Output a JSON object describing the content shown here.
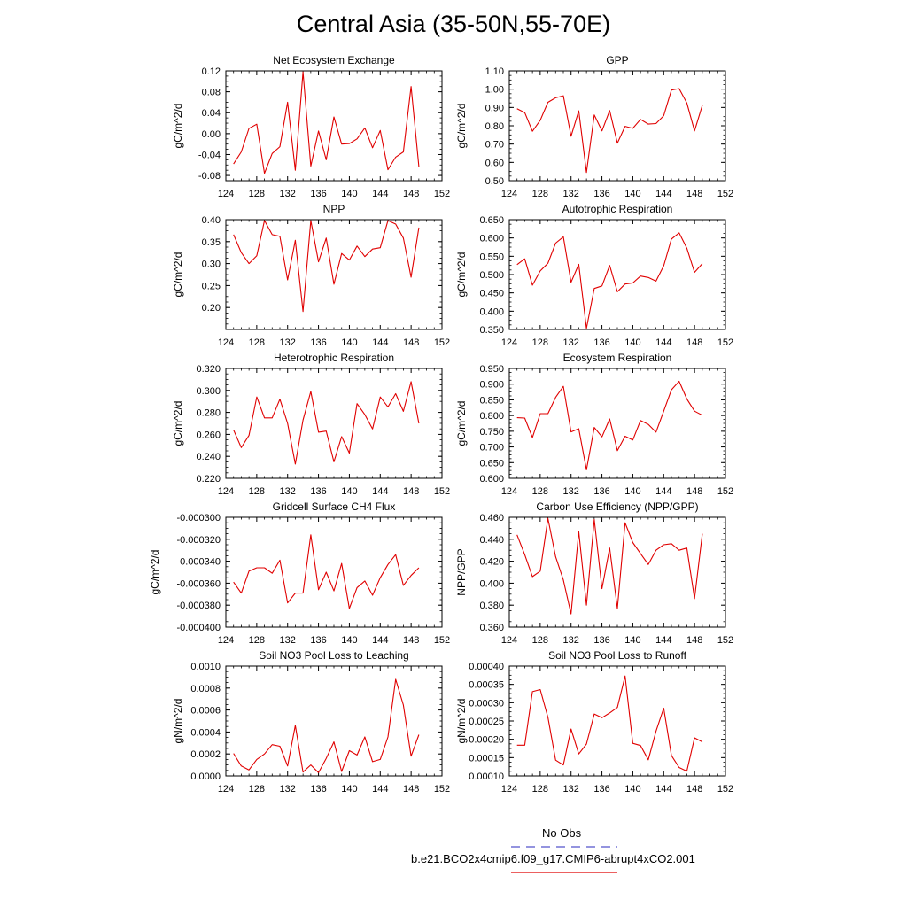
{
  "title": "Central Asia (35-50N,55-70E)",
  "legend": {
    "entries": [
      {
        "label": "No Obs",
        "color": "#5555cc",
        "style": "dashed"
      },
      {
        "label": "b.e21.BCO2x4cmip6.f09_g17.CMIP6-abrupt4xCO2.001",
        "color": "#e00000",
        "style": "solid"
      }
    ]
  },
  "chart_data": [
    {
      "type": "line",
      "title": "Net Ecosystem Exchange",
      "ylabel": "gC/m^2/d",
      "xlim": [
        124,
        152
      ],
      "ylim": [
        -0.09,
        0.12
      ],
      "xticks": [
        "124",
        "128",
        "132",
        "136",
        "140",
        "144",
        "148",
        "152"
      ],
      "yticks": [
        {
          "v": 0.12,
          "label": "0.12"
        },
        {
          "v": 0.08,
          "label": "0.08"
        },
        {
          "v": 0.04,
          "label": "0.04"
        },
        {
          "v": 0.0,
          "label": "0.00"
        },
        {
          "v": -0.04,
          "label": "-0.04"
        },
        {
          "v": -0.08,
          "label": "-0.08"
        }
      ],
      "series": [
        {
          "color": "#e00000",
          "x_start": 125,
          "values": [
            -0.058,
            -0.035,
            0.01,
            0.018,
            -0.076,
            -0.038,
            -0.025,
            0.06,
            -0.07,
            0.118,
            -0.062,
            0.005,
            -0.05,
            0.032,
            -0.02,
            -0.019,
            -0.01,
            0.011,
            -0.027,
            0.006,
            -0.069,
            -0.045,
            -0.035,
            0.09,
            -0.063
          ]
        }
      ]
    },
    {
      "type": "line",
      "title": "GPP",
      "ylabel": "gC/m^2/d",
      "xlim": [
        124,
        152
      ],
      "ylim": [
        0.5,
        1.1
      ],
      "xticks": [
        "124",
        "128",
        "132",
        "136",
        "140",
        "144",
        "148",
        "152"
      ],
      "yticks": [
        {
          "v": 1.1,
          "label": "1.10"
        },
        {
          "v": 1.0,
          "label": "1.00"
        },
        {
          "v": 0.9,
          "label": "0.90"
        },
        {
          "v": 0.8,
          "label": "0.80"
        },
        {
          "v": 0.7,
          "label": "0.70"
        },
        {
          "v": 0.6,
          "label": "0.60"
        },
        {
          "v": 0.5,
          "label": "0.50"
        }
      ],
      "series": [
        {
          "color": "#e00000",
          "x_start": 125,
          "values": [
            0.893,
            0.872,
            0.77,
            0.83,
            0.928,
            0.953,
            0.964,
            0.743,
            0.882,
            0.545,
            0.859,
            0.772,
            0.883,
            0.705,
            0.797,
            0.786,
            0.835,
            0.809,
            0.812,
            0.855,
            0.995,
            1.003,
            0.925,
            0.772,
            0.912
          ]
        }
      ]
    },
    {
      "type": "line",
      "title": "NPP",
      "ylabel": "gC/m^2/d",
      "xlim": [
        124,
        152
      ],
      "ylim": [
        0.15,
        0.4
      ],
      "xticks": [
        "124",
        "128",
        "132",
        "136",
        "140",
        "144",
        "148",
        "152"
      ],
      "yticks": [
        {
          "v": 0.4,
          "label": "0.40"
        },
        {
          "v": 0.35,
          "label": "0.35"
        },
        {
          "v": 0.3,
          "label": "0.30"
        },
        {
          "v": 0.25,
          "label": "0.25"
        },
        {
          "v": 0.2,
          "label": "0.20"
        }
      ],
      "series": [
        {
          "color": "#e00000",
          "x_start": 125,
          "values": [
            0.366,
            0.325,
            0.3,
            0.318,
            0.398,
            0.366,
            0.362,
            0.263,
            0.353,
            0.191,
            0.398,
            0.304,
            0.358,
            0.253,
            0.323,
            0.308,
            0.34,
            0.316,
            0.333,
            0.336,
            0.398,
            0.39,
            0.358,
            0.269,
            0.382
          ]
        }
      ]
    },
    {
      "type": "line",
      "title": "Autotrophic Respiration",
      "ylabel": "gC/m^2/d",
      "xlim": [
        124,
        152
      ],
      "ylim": [
        0.35,
        0.65
      ],
      "xticks": [
        "124",
        "128",
        "132",
        "136",
        "140",
        "144",
        "148",
        "152"
      ],
      "yticks": [
        {
          "v": 0.65,
          "label": "0.650"
        },
        {
          "v": 0.6,
          "label": "0.600"
        },
        {
          "v": 0.55,
          "label": "0.550"
        },
        {
          "v": 0.5,
          "label": "0.500"
        },
        {
          "v": 0.45,
          "label": "0.450"
        },
        {
          "v": 0.4,
          "label": "0.400"
        },
        {
          "v": 0.35,
          "label": "0.350"
        }
      ],
      "series": [
        {
          "color": "#e00000",
          "x_start": 125,
          "values": [
            0.527,
            0.543,
            0.471,
            0.51,
            0.531,
            0.586,
            0.603,
            0.479,
            0.528,
            0.353,
            0.462,
            0.469,
            0.525,
            0.453,
            0.474,
            0.477,
            0.496,
            0.492,
            0.482,
            0.524,
            0.597,
            0.614,
            0.572,
            0.506,
            0.53
          ]
        }
      ]
    },
    {
      "type": "line",
      "title": "Heterotrophic Respiration",
      "ylabel": "gC/m^2/d",
      "xlim": [
        124,
        152
      ],
      "ylim": [
        0.22,
        0.32
      ],
      "xticks": [
        "124",
        "128",
        "132",
        "136",
        "140",
        "144",
        "148",
        "152"
      ],
      "yticks": [
        {
          "v": 0.32,
          "label": "0.320"
        },
        {
          "v": 0.3,
          "label": "0.300"
        },
        {
          "v": 0.28,
          "label": "0.280"
        },
        {
          "v": 0.26,
          "label": "0.260"
        },
        {
          "v": 0.24,
          "label": "0.240"
        },
        {
          "v": 0.22,
          "label": "0.220"
        }
      ],
      "series": [
        {
          "color": "#e00000",
          "x_start": 125,
          "values": [
            0.264,
            0.248,
            0.259,
            0.294,
            0.275,
            0.275,
            0.292,
            0.27,
            0.233,
            0.273,
            0.299,
            0.262,
            0.263,
            0.235,
            0.258,
            0.243,
            0.288,
            0.278,
            0.265,
            0.294,
            0.285,
            0.297,
            0.281,
            0.308,
            0.27
          ]
        }
      ]
    },
    {
      "type": "line",
      "title": "Ecosystem Respiration",
      "ylabel": "gC/m^2/d",
      "xlim": [
        124,
        152
      ],
      "ylim": [
        0.6,
        0.95
      ],
      "xticks": [
        "124",
        "128",
        "132",
        "136",
        "140",
        "144",
        "148",
        "152"
      ],
      "yticks": [
        {
          "v": 0.95,
          "label": "0.950"
        },
        {
          "v": 0.9,
          "label": "0.900"
        },
        {
          "v": 0.85,
          "label": "0.850"
        },
        {
          "v": 0.8,
          "label": "0.800"
        },
        {
          "v": 0.75,
          "label": "0.750"
        },
        {
          "v": 0.7,
          "label": "0.700"
        },
        {
          "v": 0.65,
          "label": "0.650"
        },
        {
          "v": 0.6,
          "label": "0.600"
        }
      ],
      "series": [
        {
          "color": "#e00000",
          "x_start": 125,
          "values": [
            0.793,
            0.792,
            0.73,
            0.806,
            0.806,
            0.858,
            0.893,
            0.748,
            0.758,
            0.627,
            0.762,
            0.732,
            0.789,
            0.688,
            0.734,
            0.722,
            0.784,
            0.772,
            0.747,
            0.814,
            0.882,
            0.909,
            0.853,
            0.814,
            0.801
          ]
        }
      ]
    },
    {
      "type": "line",
      "title": "Gridcell Surface CH4 Flux",
      "ylabel": "gC/m^2/d",
      "xlim": [
        124,
        152
      ],
      "ylim": [
        -0.0004,
        -0.0003
      ],
      "xticks": [
        "124",
        "128",
        "132",
        "136",
        "140",
        "144",
        "148",
        "152"
      ],
      "yticks": [
        {
          "v": -0.0003,
          "label": "-0.000300"
        },
        {
          "v": -0.00032,
          "label": "-0.000320"
        },
        {
          "v": -0.00034,
          "label": "-0.000340"
        },
        {
          "v": -0.00036,
          "label": "-0.000360"
        },
        {
          "v": -0.00038,
          "label": "-0.000380"
        },
        {
          "v": -0.0004,
          "label": "-0.000400"
        }
      ],
      "series": [
        {
          "color": "#e00000",
          "x_start": 125,
          "values": [
            -0.000359,
            -0.000369,
            -0.000349,
            -0.000346,
            -0.000346,
            -0.000351,
            -0.000339,
            -0.000378,
            -0.000369,
            -0.000369,
            -0.000316,
            -0.000366,
            -0.00035,
            -0.000367,
            -0.000342,
            -0.000383,
            -0.000364,
            -0.000358,
            -0.000371,
            -0.000355,
            -0.000343,
            -0.000334,
            -0.000362,
            -0.000353,
            -0.000346
          ]
        }
      ]
    },
    {
      "type": "line",
      "title": "Carbon Use Efficiency (NPP/GPP)",
      "ylabel": "NPP/GPP",
      "xlim": [
        124,
        152
      ],
      "ylim": [
        0.36,
        0.46
      ],
      "xticks": [
        "124",
        "128",
        "132",
        "136",
        "140",
        "144",
        "148",
        "152"
      ],
      "yticks": [
        {
          "v": 0.46,
          "label": "0.460"
        },
        {
          "v": 0.44,
          "label": "0.440"
        },
        {
          "v": 0.42,
          "label": "0.420"
        },
        {
          "v": 0.4,
          "label": "0.400"
        },
        {
          "v": 0.38,
          "label": "0.380"
        },
        {
          "v": 0.36,
          "label": "0.360"
        }
      ],
      "series": [
        {
          "color": "#e00000",
          "x_start": 125,
          "values": [
            0.444,
            0.426,
            0.406,
            0.411,
            0.459,
            0.424,
            0.403,
            0.372,
            0.447,
            0.38,
            0.458,
            0.395,
            0.432,
            0.377,
            0.455,
            0.437,
            0.427,
            0.417,
            0.43,
            0.435,
            0.436,
            0.43,
            0.432,
            0.386,
            0.445
          ]
        }
      ]
    },
    {
      "type": "line",
      "title": "Soil NO3 Pool Loss to Leaching",
      "ylabel": "gN/m^2/d",
      "xlim": [
        124,
        152
      ],
      "ylim": [
        0.0,
        0.001
      ],
      "xticks": [
        "124",
        "128",
        "132",
        "136",
        "140",
        "144",
        "148",
        "152"
      ],
      "yticks": [
        {
          "v": 0.001,
          "label": "0.0010"
        },
        {
          "v": 0.0008,
          "label": "0.0008"
        },
        {
          "v": 0.0006,
          "label": "0.0006"
        },
        {
          "v": 0.0004,
          "label": "0.0004"
        },
        {
          "v": 0.0002,
          "label": "0.0002"
        },
        {
          "v": 0.0,
          "label": "0.0000"
        }
      ],
      "series": [
        {
          "color": "#e00000",
          "x_start": 125,
          "values": [
            0.000205,
            9e-05,
            5.5e-05,
            0.00015,
            0.0002,
            0.000285,
            0.00027,
            9e-05,
            0.00046,
            3.5e-05,
            0.0001,
            3e-05,
            0.00016,
            0.00031,
            4e-05,
            0.00023,
            0.00019,
            0.000355,
            0.00013,
            0.00015,
            0.000355,
            0.00088,
            0.000645,
            0.00018,
            0.000375
          ]
        }
      ]
    },
    {
      "type": "line",
      "title": "Soil NO3 Pool Loss to Runoff",
      "ylabel": "gN/m^2/d",
      "xlim": [
        124,
        152
      ],
      "ylim": [
        0.0001,
        0.0004
      ],
      "xticks": [
        "124",
        "128",
        "132",
        "136",
        "140",
        "144",
        "148",
        "152"
      ],
      "yticks": [
        {
          "v": 0.0004,
          "label": "0.00040"
        },
        {
          "v": 0.00035,
          "label": "0.00035"
        },
        {
          "v": 0.0003,
          "label": "0.00030"
        },
        {
          "v": 0.00025,
          "label": "0.00025"
        },
        {
          "v": 0.0002,
          "label": "0.00020"
        },
        {
          "v": 0.00015,
          "label": "0.00015"
        },
        {
          "v": 0.0001,
          "label": "0.00010"
        }
      ],
      "series": [
        {
          "color": "#e00000",
          "x_start": 125,
          "values": [
            0.000184,
            0.000184,
            0.00033,
            0.000336,
            0.00026,
            0.000143,
            0.00013,
            0.000228,
            0.00016,
            0.000187,
            0.000269,
            0.000259,
            0.000272,
            0.000287,
            0.000373,
            0.000189,
            0.000183,
            0.000144,
            0.000222,
            0.000285,
            0.000156,
            0.000123,
            0.000113,
            0.000204,
            0.000193
          ]
        }
      ]
    }
  ]
}
